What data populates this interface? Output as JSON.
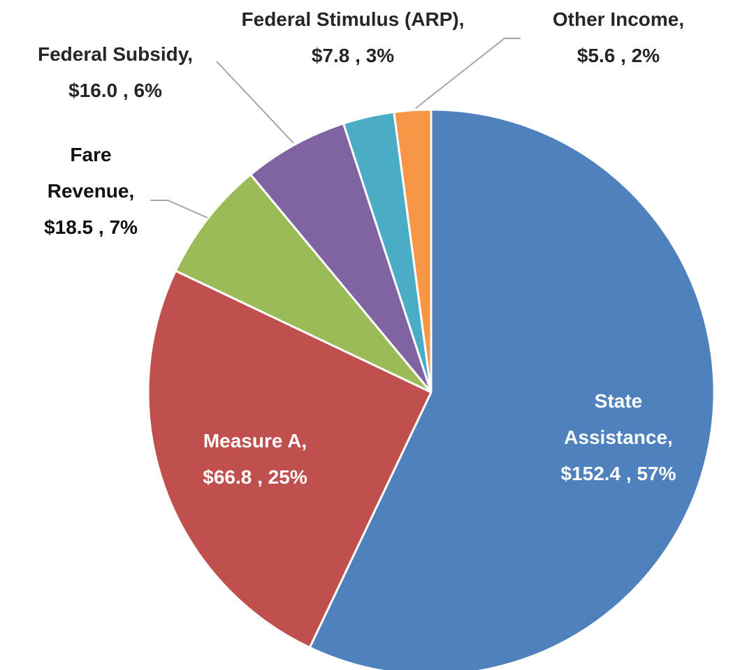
{
  "chart_data": {
    "type": "pie",
    "categories": [
      "State Assistance,",
      "Measure A,",
      "Fare Revenue,",
      "Federal Subsidy,",
      "Federal Stimulus (ARP),",
      "Other Income,"
    ],
    "values": [
      152.4,
      66.8,
      18.5,
      16.0,
      7.8,
      5.6
    ],
    "value_labels": [
      "$152.4 , 57%",
      "$66.8 , 25%",
      "$18.5 , 7%",
      "$16.0 , 6%",
      "$7.8 , 3%",
      "$5.6 , 2%"
    ],
    "colors": [
      "#4f81bd",
      "#c0504d",
      "#9bbb59",
      "#8064a2",
      "#4bacc6",
      "#f79646"
    ]
  }
}
